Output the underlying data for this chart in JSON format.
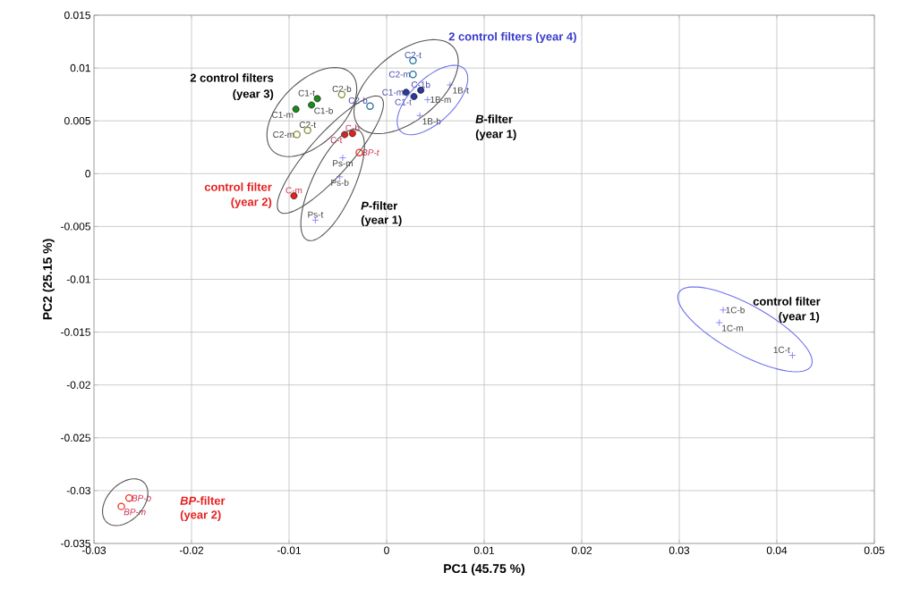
{
  "chart_data": {
    "type": "scatter",
    "xlabel": "PC1 (45.75 %)",
    "ylabel": "PC2 (25.15 %)",
    "xlim": [
      -0.03,
      0.05
    ],
    "xticks": [
      -0.03,
      -0.02,
      -0.01,
      0,
      0.01,
      0.02,
      0.03,
      0.04,
      0.05
    ],
    "ylim": [
      -0.035,
      0.015
    ],
    "yticks": [
      -0.035,
      -0.03,
      -0.025,
      -0.02,
      -0.015,
      -0.01,
      -0.005,
      0,
      0.005,
      0.01,
      0.015
    ],
    "grid": true,
    "series": [
      {
        "color": "#1a8a1a",
        "marker": "circle",
        "x": [
          -0.0071,
          -0.0077,
          -0.0093
        ],
        "values": [
          0.0071,
          0.0065,
          0.0061
        ]
      },
      {
        "color": "#8a8a3a",
        "marker": "circle",
        "x": [
          -0.0046,
          -0.0081,
          -0.0092
        ],
        "values": [
          0.0075,
          0.0041,
          0.0037
        ]
      },
      {
        "color": "#e8201a",
        "marker": "circle",
        "x": [
          -0.0035,
          -0.0043,
          -0.0095
        ],
        "values": [
          0.0038,
          0.0037,
          -0.0021
        ]
      },
      {
        "color": "#f03020",
        "marker": "circle",
        "x": [
          -0.0028
        ],
        "values": [
          0.002
        ]
      },
      {
        "color": "#7f7fff",
        "marker": "cross",
        "x": [
          -0.0045,
          -0.0048,
          -0.0073
        ],
        "values": [
          0.0015,
          -0.0003,
          -0.0044
        ]
      },
      {
        "color": "#1f6f9f",
        "marker": "circle",
        "x": [
          0.0027,
          0.0027,
          -0.0017
        ],
        "values": [
          0.0107,
          0.0094,
          0.0064
        ]
      },
      {
        "color": "#2a3a9a",
        "marker": "circle",
        "x": [
          0.002,
          0.0035,
          0.0028
        ],
        "values": [
          0.0077,
          0.0079,
          0.0073
        ]
      },
      {
        "color": "#7f7fff",
        "marker": "cross",
        "x": [
          0.0065,
          0.0042,
          0.0034
        ],
        "values": [
          0.0084,
          0.007,
          0.0055
        ]
      },
      {
        "color": "#7f7fff",
        "marker": "cross",
        "x": [
          0.0345,
          0.0341,
          0.0416
        ],
        "values": [
          -0.0129,
          -0.0141,
          -0.0172
        ]
      },
      {
        "color": "#f03020",
        "marker": "circle",
        "x": [
          -0.0264,
          -0.0272
        ],
        "values": [
          -0.0307,
          -0.0315
        ]
      }
    ],
    "annotations": [
      "2 control filters",
      "(year 3)",
      "2 control filters (year 4)",
      "*B*-filter",
      "(year 1)",
      "control filter",
      "(year 2)",
      "*P*-filter",
      "(year 1)",
      "control filter",
      "(year 1)",
      "*BP*-filter",
      "(year 2)",
      {
        "text": "C1-t",
        "x": -0.0071,
        "y": 0.0071
      },
      {
        "text": "C1-b",
        "x": -0.0077,
        "y": 0.0065
      },
      {
        "text": "C1-m",
        "x": -0.0093,
        "y": 0.0061
      },
      {
        "text": "C2-b",
        "x": -0.0046,
        "y": 0.0075
      },
      {
        "text": "C2-t",
        "x": -0.0081,
        "y": 0.0041
      },
      {
        "text": "C2-m",
        "x": -0.0092,
        "y": 0.0037
      },
      {
        "text": "C-b",
        "x": -0.0035,
        "y": 0.0038
      },
      {
        "text": "C-t",
        "x": -0.0043,
        "y": 0.0037
      },
      {
        "text": "C-m",
        "x": -0.0095,
        "y": -0.0021
      },
      {
        "text": "BP-t",
        "x": -0.0028,
        "y": 0.002
      },
      {
        "text": "Ps-m",
        "x": -0.0045,
        "y": 0.0015
      },
      {
        "text": "Ps-b",
        "x": -0.0048,
        "y": -0.0003
      },
      {
        "text": "Ps-t",
        "x": -0.0073,
        "y": -0.0044
      },
      {
        "text": "C2-t",
        "x": 0.0027,
        "y": 0.0107
      },
      {
        "text": "C2-m",
        "x": 0.0027,
        "y": 0.0094
      },
      {
        "text": "C2-b",
        "x": -0.0017,
        "y": 0.0064
      },
      {
        "text": "C1-m",
        "x": 0.002,
        "y": 0.0077
      },
      {
        "text": "C-1b",
        "x": 0.0035,
        "y": 0.0079
      },
      {
        "text": "C1-t",
        "x": 0.0028,
        "y": 0.0073
      },
      {
        "text": "1B-t",
        "x": 0.0065,
        "y": 0.0084
      },
      {
        "text": "1B-m",
        "x": 0.0042,
        "y": 0.007
      },
      {
        "text": "1B-b",
        "x": 0.0034,
        "y": 0.0055
      },
      {
        "text": "1C-b",
        "x": 0.0345,
        "y": -0.0129
      },
      {
        "text": "1C-m",
        "x": 0.0341,
        "y": -0.0141
      },
      {
        "text": "1C-t",
        "x": 0.0416,
        "y": -0.0172
      },
      {
        "text": "BP-b",
        "x": -0.0264,
        "y": -0.0307
      },
      {
        "text": "BP-m",
        "x": -0.0272,
        "y": -0.0315
      }
    ]
  }
}
